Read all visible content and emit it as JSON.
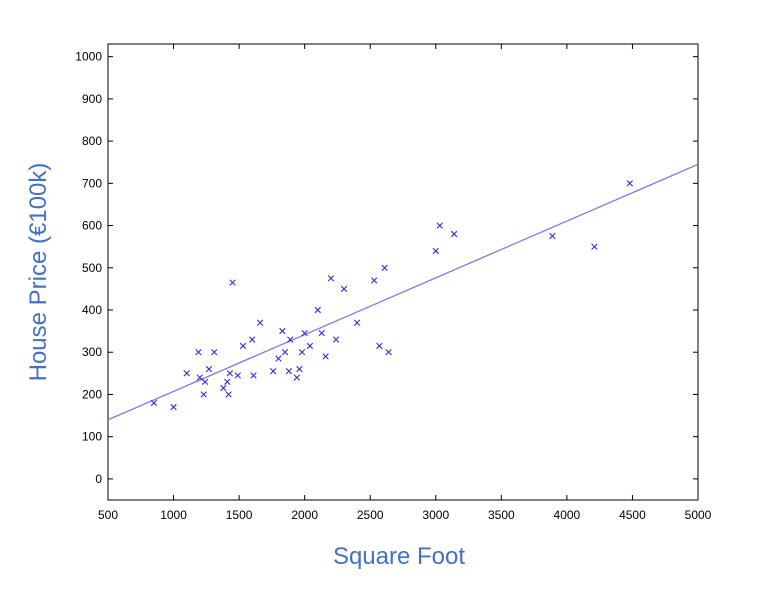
{
  "chart_data": {
    "type": "scatter",
    "xlabel": "Square Foot",
    "ylabel": "House Price (€100k)",
    "xlim": [
      500,
      5000
    ],
    "ylim": [
      -50,
      1030
    ],
    "x_ticks": [
      500,
      1000,
      1500,
      2000,
      2500,
      3000,
      3500,
      4000,
      4500,
      5000
    ],
    "y_ticks": [
      0,
      100,
      200,
      300,
      400,
      500,
      600,
      700,
      800,
      900,
      1000
    ],
    "x_tick_labels": [
      "500",
      "1000",
      "1500",
      "2000",
      "2500",
      "3000",
      "3500",
      "4000",
      "4500",
      "5000"
    ],
    "y_tick_labels": [
      "0",
      "100",
      "200",
      "300",
      "400",
      "500",
      "600",
      "700",
      "800",
      "900",
      "1000"
    ],
    "grid": false,
    "marker": "x",
    "points": [
      [
        850,
        180
      ],
      [
        1000,
        170
      ],
      [
        1100,
        250
      ],
      [
        1190,
        300
      ],
      [
        1200,
        240
      ],
      [
        1230,
        200
      ],
      [
        1240,
        230
      ],
      [
        1270,
        260
      ],
      [
        1310,
        300
      ],
      [
        1380,
        215
      ],
      [
        1410,
        230
      ],
      [
        1420,
        200
      ],
      [
        1430,
        250
      ],
      [
        1450,
        465
      ],
      [
        1490,
        245
      ],
      [
        1530,
        315
      ],
      [
        1600,
        330
      ],
      [
        1610,
        245
      ],
      [
        1660,
        370
      ],
      [
        1760,
        255
      ],
      [
        1800,
        285
      ],
      [
        1830,
        350
      ],
      [
        1850,
        300
      ],
      [
        1880,
        255
      ],
      [
        1890,
        330
      ],
      [
        1940,
        240
      ],
      [
        1960,
        260
      ],
      [
        1980,
        300
      ],
      [
        2000,
        345
      ],
      [
        2040,
        315
      ],
      [
        2100,
        400
      ],
      [
        2130,
        345
      ],
      [
        2160,
        290
      ],
      [
        2200,
        475
      ],
      [
        2240,
        330
      ],
      [
        2300,
        450
      ],
      [
        2400,
        370
      ],
      [
        2530,
        470
      ],
      [
        2570,
        315
      ],
      [
        2610,
        500
      ],
      [
        2640,
        300
      ],
      [
        3000,
        540
      ],
      [
        3030,
        600
      ],
      [
        3140,
        580
      ],
      [
        3890,
        575
      ],
      [
        4210,
        550
      ],
      [
        4480,
        700
      ]
    ],
    "fit_line": {
      "x": [
        500,
        5000
      ],
      "y": [
        140,
        745
      ]
    },
    "colors": {
      "points": "#2f2fd6",
      "line": "#7a7aee",
      "axis_titles": "#4471c4"
    }
  }
}
